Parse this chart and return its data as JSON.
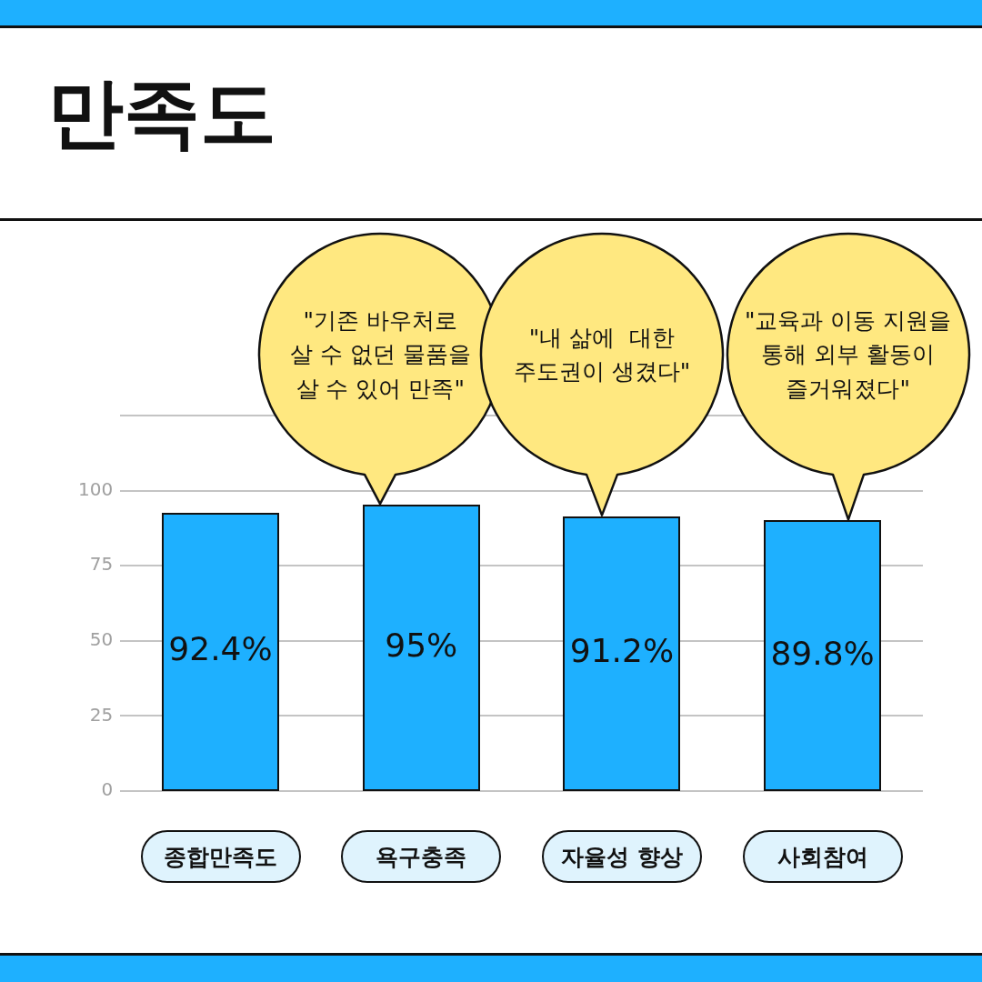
{
  "chart_data": {
    "type": "bar",
    "title": "만족도",
    "categories": [
      "종합만족도",
      "욕구충족",
      "자율성 향상",
      "사회참여"
    ],
    "values": [
      92.4,
      95,
      91.2,
      89.8
    ],
    "value_labels": [
      "92.4%",
      "95%",
      "91.2%",
      "89.8%"
    ],
    "color": "#1eb0ff",
    "ylim": [
      0,
      125
    ],
    "yticks": [
      0,
      25,
      50,
      75,
      100,
      {
        "value": 125,
        "label": null
      }
    ],
    "grid": "y",
    "annotations": [
      "\"기존 바우처로\n살 수 없던 물품을\n살 수 있어 만족\"",
      "\"내 삶에  대한\n주도권이 생겼다\"",
      "\"교육과 이동 지원을\n통해 외부 활동이\n즐거워졌다\""
    ]
  }
}
